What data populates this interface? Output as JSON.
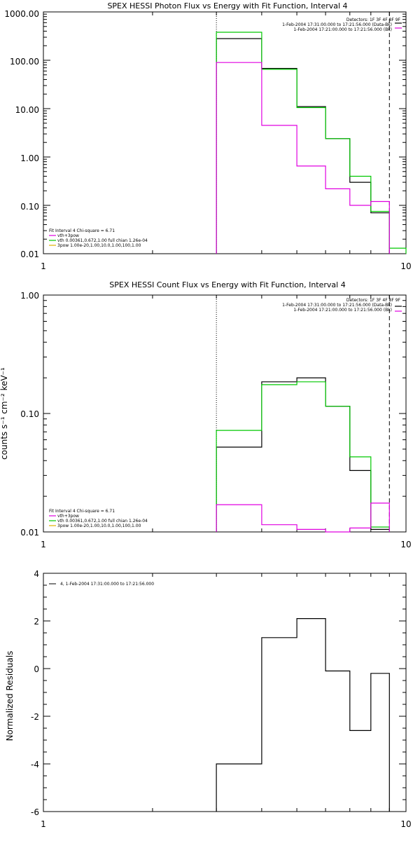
{
  "chart_data": [
    {
      "type": "line",
      "title": "SPEX HESSI Photon Flux vs Energy with Fit Function, Interval 4",
      "xlabel": "",
      "ylabel": "",
      "xscale": "log",
      "yscale": "log",
      "xlim": [
        1,
        10
      ],
      "ylim": [
        0.01,
        1000
      ],
      "xticks": [
        "1",
        "10"
      ],
      "yticks": [
        "1000.00",
        "100.00",
        "10.00",
        "1.00",
        "0.10",
        "0.01"
      ],
      "vlines": {
        "dotted": 3,
        "dashed": 9
      },
      "info_right": [
        "Detectors: 1F 3F 4F 8F 9F",
        "1-Feb-2004 17:31:00.000 to 17:21:56.000 (Data-Bk)",
        "1-Feb-2004 17:21:00.000 to 17:21:56.000 (Bk)"
      ],
      "info_left": [
        "Fit Interval 4   Chi-square = 6.71",
        "vth+3pow",
        "vth 0.00361,0.672,1.00   full chian 1.26e-04",
        "3pow 1.00e-20,1.00,10.0,1.00,100,1.00"
      ],
      "series": [
        {
          "name": "Data-Bk",
          "color": "#000000",
          "edges": [
            3,
            4,
            5,
            6,
            7,
            8,
            9
          ],
          "values": [
            280,
            68,
            11,
            2.4,
            0.3,
            0.07
          ]
        },
        {
          "name": "vth+3pow",
          "color": "#00c800",
          "edges": [
            3,
            4,
            5,
            6,
            7,
            8,
            9,
            10
          ],
          "values": [
            380,
            65,
            10.5,
            2.4,
            0.4,
            0.075,
            0.013
          ]
        },
        {
          "name": "Bk",
          "color": "#e000e0",
          "edges": [
            3,
            4,
            5,
            6,
            7,
            8,
            9
          ],
          "values": [
            90,
            4.5,
            0.65,
            0.22,
            0.1,
            0.12
          ]
        }
      ]
    },
    {
      "type": "line",
      "title": "SPEX HESSI Count Flux vs Energy with Fit Function, Interval 4",
      "xlabel": "",
      "ylabel": "counts s⁻¹ cm⁻² keV⁻¹",
      "xscale": "log",
      "yscale": "log",
      "xlim": [
        1,
        10
      ],
      "ylim": [
        0.01,
        1.0
      ],
      "xticks": [
        "1",
        "10"
      ],
      "yticks": [
        "1.00",
        "0.10",
        "0.01"
      ],
      "vlines": {
        "dotted": 3,
        "dashed": 9
      },
      "info_right": [
        "Detectors: 1F 3F 4F 8F 9F",
        "1-Feb-2004 17:31:00.000 to 17:21:56.000 (Data-Bk)",
        "1-Feb-2004 17:21:00.000 to 17:21:56.000 (Bk)"
      ],
      "info_left": [
        "Fit Interval 4   Chi-square = 6.71",
        "vth+3pow",
        "vth 0.00361,0.672,1.00   full chian 1.26e-04",
        "3pow 1.00e-20,1.00,10.0,1.00,100,1.00"
      ],
      "series": [
        {
          "name": "Data-Bk",
          "color": "#000000",
          "edges": [
            3,
            4,
            5,
            6,
            7,
            8,
            9
          ],
          "values": [
            0.052,
            0.185,
            0.2,
            0.115,
            0.033,
            0.0105
          ]
        },
        {
          "name": "vth+3pow",
          "color": "#00c800",
          "edges": [
            3,
            4,
            5,
            6,
            7,
            8,
            9
          ],
          "values": [
            0.072,
            0.175,
            0.185,
            0.115,
            0.043,
            0.011
          ]
        },
        {
          "name": "Bk",
          "color": "#e000e0",
          "edges": [
            3,
            4,
            5,
            6,
            7,
            8,
            9
          ],
          "values": [
            0.017,
            0.0115,
            0.0105,
            0.01,
            0.0108,
            0.0175
          ]
        }
      ]
    },
    {
      "type": "line",
      "title": "",
      "xlabel": "",
      "ylabel": "Normalized Residuals",
      "xscale": "log",
      "yscale": "linear",
      "xlim": [
        1,
        10
      ],
      "ylim": [
        -6,
        4
      ],
      "xticks": [
        "1",
        "10"
      ],
      "yticks": [
        "4",
        "2",
        "0",
        "-2",
        "-4",
        "-6"
      ],
      "legend": "4,  1-Feb-2004 17:31:00.000 to 17:21:56.000",
      "series": [
        {
          "name": "4",
          "color": "#000000",
          "edges": [
            3,
            4,
            5,
            6,
            7,
            8,
            9
          ],
          "values": [
            -4.0,
            1.3,
            2.1,
            -0.1,
            -2.6,
            -0.2
          ]
        }
      ]
    }
  ]
}
